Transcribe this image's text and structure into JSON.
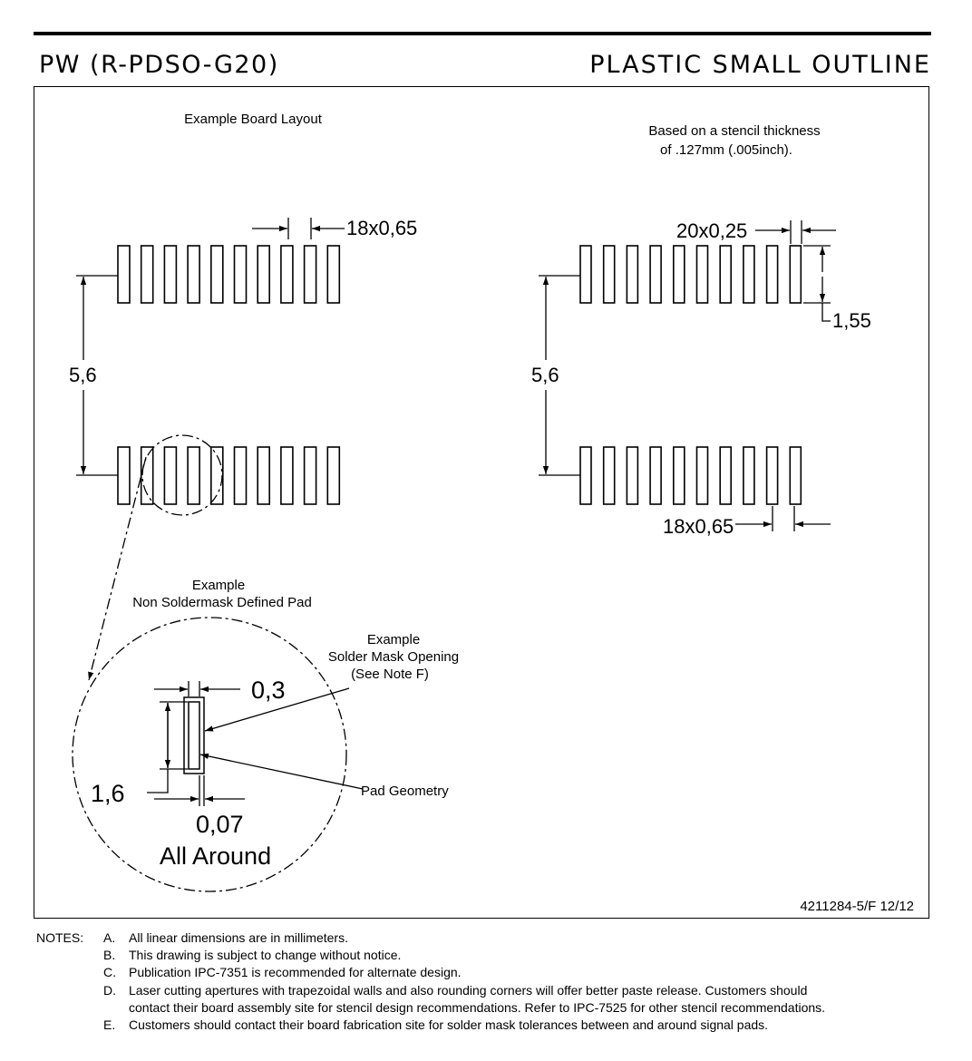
{
  "header": {
    "package_code": "PW (R-PDSO-G20)",
    "package_type": "PLASTIC SMALL OUTLINE"
  },
  "drawing": {
    "left_title": "Example Board Layout",
    "stencil_note_line1": "Based on a stencil thickness",
    "stencil_note_line2": "of .127mm (.005inch).",
    "left_pitch": "18x0,65",
    "left_span": "5,6",
    "right_pad_width": "20x0,25",
    "right_pad_length": "1,55",
    "right_span": "5,6",
    "right_pitch": "18x0,65",
    "detail_title_line1": "Example",
    "detail_title_line2": "Non Soldermask Defined Pad",
    "mask_label_line1": "Example",
    "mask_label_line2": "Solder Mask Opening",
    "mask_label_line3": "(See Note F)",
    "pad_geometry_label": "Pad Geometry",
    "detail_pad_width": "0,3",
    "detail_pad_length": "1,6",
    "detail_clearance": "0,07",
    "detail_all_around": "All Around",
    "drawing_number": "4211284-5/F  12/12"
  },
  "notes": {
    "heading": "NOTES:",
    "items": [
      {
        "letter": "A.",
        "text": "All linear dimensions are in millimeters."
      },
      {
        "letter": "B.",
        "text": "This drawing is subject to change without notice."
      },
      {
        "letter": "C.",
        "text": "Publication IPC-7351 is recommended for alternate design."
      },
      {
        "letter": "D.",
        "text": "Laser cutting apertures with trapezoidal walls and also rounding corners will offer better paste release.  Customers should\ncontact their board assembly site for stencil design recommendations. Refer to IPC-7525 for other stencil recommendations."
      },
      {
        "letter": "E.",
        "text": "Customers should contact their board fabrication site for solder mask tolerances between and around signal pads."
      }
    ]
  }
}
